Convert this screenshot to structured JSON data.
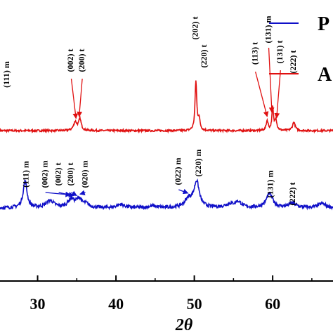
{
  "chart_data": {
    "type": "line",
    "xlabel": "2θ",
    "ylabel": "",
    "xlim": [
      25.2,
      67.7
    ],
    "ylim": [
      0,
      1
    ],
    "x_ticks": [
      30,
      40,
      50,
      60
    ],
    "x_tick_labels": [
      "30",
      "40",
      "50",
      "60"
    ],
    "grid": false,
    "legend": {
      "placement": "top-right",
      "entries": [
        "P",
        "A"
      ]
    },
    "colors": {
      "blue": "#1010c8",
      "red": "#e01010"
    },
    "series": [
      {
        "name": "A",
        "color": "#e01010",
        "baseline": 0.535,
        "peaks": [
          {
            "x": 34.8,
            "height": 0.03,
            "width": 0.25
          },
          {
            "x": 35.4,
            "height": 0.04,
            "width": 0.2
          },
          {
            "x": 50.2,
            "height": 0.175,
            "width": 0.13
          },
          {
            "x": 50.6,
            "height": 0.04,
            "width": 0.15
          },
          {
            "x": 59.3,
            "height": 0.035,
            "width": 0.15
          },
          {
            "x": 60.0,
            "height": 0.08,
            "width": 0.12
          },
          {
            "x": 60.4,
            "height": 0.04,
            "width": 0.15
          },
          {
            "x": 62.7,
            "height": 0.03,
            "width": 0.2
          }
        ]
      },
      {
        "name": "P",
        "color": "#1010c8",
        "baseline": 0.26,
        "peaks": [
          {
            "x": 28.4,
            "height": 0.095,
            "width": 0.3
          },
          {
            "x": 31.6,
            "height": 0.025,
            "width": 0.6
          },
          {
            "x": 34.3,
            "height": 0.03,
            "width": 0.5
          },
          {
            "x": 35.3,
            "height": 0.03,
            "width": 0.4
          },
          {
            "x": 36.2,
            "height": 0.012,
            "width": 0.4
          },
          {
            "x": 40.6,
            "height": 0.012,
            "width": 0.6
          },
          {
            "x": 44.7,
            "height": 0.006,
            "width": 0.6
          },
          {
            "x": 49.3,
            "height": 0.03,
            "width": 0.6
          },
          {
            "x": 50.3,
            "height": 0.09,
            "width": 0.4
          },
          {
            "x": 54.5,
            "height": 0.012,
            "width": 0.7
          },
          {
            "x": 55.6,
            "height": 0.02,
            "width": 0.5
          },
          {
            "x": 59.6,
            "height": 0.05,
            "width": 0.5
          },
          {
            "x": 62.5,
            "height": 0.015,
            "width": 0.6
          },
          {
            "x": 66.3,
            "height": 0.015,
            "width": 0.6
          }
        ]
      }
    ],
    "annotations": [
      {
        "text": "(111) m",
        "series": "A",
        "x": 26.1,
        "label_y": 0.735
      },
      {
        "text": "(002) t",
        "series": "A",
        "x": 34.3,
        "label_y": 0.785,
        "arrow_to_x": 34.9
      },
      {
        "text": "(200) t",
        "series": "A",
        "x": 35.7,
        "label_y": 0.785,
        "arrow_to_x": 35.3
      },
      {
        "text": "(202) t",
        "series": "A",
        "x": 50.2,
        "label_y": 0.9
      },
      {
        "text": "(220) t",
        "series": "A",
        "x": 51.3,
        "label_y": 0.8
      },
      {
        "text": "(113) t",
        "series": "A",
        "x": 57.8,
        "label_y": 0.81,
        "arrow_to_x": 59.3
      },
      {
        "text": "(131) m",
        "series": "A",
        "x": 59.5,
        "label_y": 0.895,
        "arrow_to_x": 59.9
      },
      {
        "text": "(131) t",
        "series": "A",
        "x": 61.0,
        "label_y": 0.815,
        "arrow_to_x": 60.5
      },
      {
        "text": "(222) t",
        "series": "A",
        "x": 62.7,
        "label_y": 0.78
      },
      {
        "text": "(111) m",
        "series": "P",
        "x": 28.6,
        "label_y": 0.38
      },
      {
        "text": "(002) m",
        "series": "P",
        "x": 31.0,
        "label_y": 0.38,
        "arrow_to_x": 34.2
      },
      {
        "text": "(002) t",
        "series": "P",
        "x": 32.7,
        "label_y": 0.38,
        "arrow_to_x": 34.6
      },
      {
        "text": "(200) t",
        "series": "P",
        "x": 34.3,
        "label_y": 0.38,
        "arrow_to_x": 35.0
      },
      {
        "text": "(020) m",
        "series": "P",
        "x": 36.1,
        "label_y": 0.38,
        "arrow_to_x": 35.4
      },
      {
        "text": "(022) m",
        "series": "P",
        "x": 48.0,
        "label_y": 0.39,
        "arrow_to_x": 49.2
      },
      {
        "text": "(220) m",
        "series": "P",
        "x": 50.6,
        "label_y": 0.42
      },
      {
        "text": "(131) m",
        "series": "P",
        "x": 59.8,
        "label_y": 0.345
      },
      {
        "text": "(222) t",
        "series": "P",
        "x": 62.6,
        "label_y": 0.31
      }
    ]
  }
}
